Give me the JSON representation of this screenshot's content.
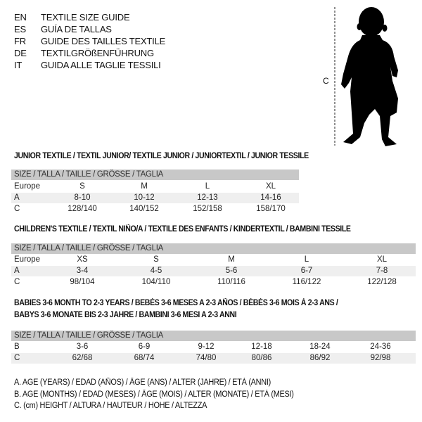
{
  "languages": [
    {
      "code": "EN",
      "text": "TEXTILE SIZE GUIDE"
    },
    {
      "code": "ES",
      "text": "GUÍA DE TALLAS"
    },
    {
      "code": "FR",
      "text": "GUIDE DES TAILLES TEXTILE"
    },
    {
      "code": "DE",
      "text": "TEXTILGRÖßENFÜHRUNG"
    },
    {
      "code": "IT",
      "text": "GUIDA ALLE TAGLIE TESSILI"
    }
  ],
  "figure": {
    "measure_label": "C",
    "icon": "baby-silhouette"
  },
  "size_header": "SIZE / TALLA / TAILLE / GRÖSSE / TAGLIA",
  "junior": {
    "title": "JUNIOR TEXTILE / TEXTIL JUNIOR/ TEXTILE JUNIOR / JUNIORTEXTIL / JUNIOR TESSILE",
    "rows": [
      {
        "label": "Europe",
        "values": [
          "S",
          "M",
          "L",
          "XL"
        ]
      },
      {
        "label": "A",
        "values": [
          "8-10",
          "10-12",
          "12-13",
          "14-16"
        ]
      },
      {
        "label": "C",
        "values": [
          "128/140",
          "140/152",
          "152/158",
          "158/170"
        ]
      }
    ]
  },
  "children": {
    "title": "CHILDREN'S TEXTILE / TEXTIL NIÑO/A / TEXTILE DES ENFANTS / KINDERTEXTIL / BAMBINI TESSILE",
    "rows": [
      {
        "label": "Europe",
        "values": [
          "XS",
          "S",
          "M",
          "L",
          "XL"
        ]
      },
      {
        "label": "A",
        "values": [
          "3-4",
          "4-5",
          "5-6",
          "6-7",
          "7-8"
        ]
      },
      {
        "label": "C",
        "values": [
          "98/104",
          "104/110",
          "110/116",
          "116/122",
          "122/128"
        ]
      }
    ]
  },
  "babies": {
    "title_line1": "BABIES 3-6 MONTH TO 2-3 YEARS / BEBÉS 3-6 MESES A 2-3 AÑOS / BÉBÉS 3-6 MOIS À 2-3 ANS /",
    "title_line2": "BABYS 3-6 MONATE BIS 2-3 JAHRE / BAMBINI 3-6 MESI A 2-3 ANNI",
    "rows": [
      {
        "label": "B",
        "values": [
          "3-6",
          "6-9",
          "9-12",
          "12-18",
          "18-24",
          "24-36"
        ]
      },
      {
        "label": "C",
        "values": [
          "62/68",
          "68/74",
          "74/80",
          "80/86",
          "86/92",
          "92/98"
        ]
      }
    ]
  },
  "legend": [
    "A. AGE (YEARS) / EDAD (AÑOS) / ÂGE (ANS) / ALTER (JAHRE) / ETÀ (ANNI)",
    "B. AGE (MONTHS) / EDAD (MESES) / ÂGE (MOIS) / ALTER (MONATE) / ETÀ (MESI)",
    "C. (cm) HEIGHT / ALTURA / HAUTEUR / HÖHE / ALTEZZA"
  ]
}
